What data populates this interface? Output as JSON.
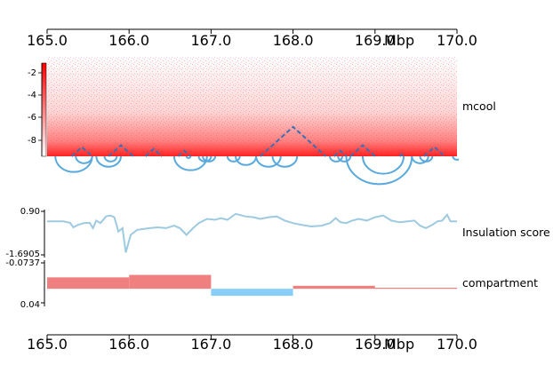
{
  "chart_data": {
    "type": "genome-tracks",
    "x_axis": {
      "range": [
        165.0,
        170.0
      ],
      "ticks": [
        "165.0",
        "166.0",
        "167.0",
        "168.0",
        "169.0",
        "170.0"
      ],
      "unit": "Mbp"
    },
    "tracks": [
      {
        "name": "mcool",
        "type": "heatmap",
        "colormap": [
          "#ffffff",
          "#ff0000"
        ],
        "colorbar_ticks": [
          "-2",
          "-4",
          "-6",
          "-8"
        ],
        "tad_boundaries": [
          165.0,
          165.3,
          165.55,
          165.75,
          166.05,
          166.2,
          166.4,
          166.6,
          166.75,
          167.6,
          168.4,
          168.5,
          168.65,
          168.7,
          169.0,
          169.3,
          169.35,
          169.6,
          169.85,
          170.0
        ],
        "tad_height": [
          0,
          1,
          0,
          0.8,
          0,
          1.1,
          0,
          0.9,
          0,
          3.1,
          0,
          0.6,
          0,
          0.9,
          0,
          0.9,
          0,
          0.9,
          0
        ],
        "loops": [
          [
            165.1,
            165.55
          ],
          [
            165.35,
            165.55
          ],
          [
            165.6,
            165.9
          ],
          [
            165.7,
            165.85
          ],
          [
            166.55,
            166.95
          ],
          [
            166.7,
            166.75
          ],
          [
            166.9,
            167.05
          ],
          [
            166.85,
            167.0
          ],
          [
            167.2,
            167.35
          ],
          [
            167.3,
            167.55
          ],
          [
            167.55,
            167.85
          ],
          [
            167.75,
            168.05
          ],
          [
            168.45,
            168.6
          ],
          [
            168.55,
            168.7
          ],
          [
            168.65,
            169.45
          ],
          [
            168.85,
            169.35
          ],
          [
            169.45,
            169.65
          ],
          [
            169.55,
            169.7
          ],
          [
            169.95,
            170.05
          ]
        ]
      },
      {
        "name": "Insulation score",
        "type": "line",
        "ylim": [
          -1.6905,
          0.9
        ],
        "y_tick_labels": [
          "0.90",
          "-1.6905"
        ],
        "color": "#9ecae1",
        "x": [
          165.0,
          165.2,
          165.28,
          165.32,
          165.38,
          165.45,
          165.52,
          165.56,
          165.6,
          165.65,
          165.72,
          165.77,
          165.82,
          165.87,
          165.92,
          165.96,
          166.02,
          166.1,
          166.25,
          166.35,
          166.45,
          166.55,
          166.62,
          166.7,
          166.78,
          166.85,
          166.95,
          167.05,
          167.12,
          167.2,
          167.3,
          167.42,
          167.52,
          167.6,
          167.7,
          167.8,
          167.9,
          168.0,
          168.1,
          168.22,
          168.35,
          168.45,
          168.52,
          168.58,
          168.65,
          168.72,
          168.8,
          168.9,
          169.0,
          169.1,
          169.2,
          169.3,
          169.4,
          169.48,
          169.55,
          169.62,
          169.7,
          169.76,
          169.82,
          169.88,
          169.92,
          170.0
        ],
        "y": [
          0.3,
          0.3,
          0.22,
          -0.05,
          0.1,
          0.2,
          0.22,
          -0.1,
          0.35,
          0.2,
          0.6,
          0.65,
          0.55,
          -0.3,
          -0.1,
          -1.55,
          -0.5,
          -0.2,
          -0.1,
          -0.05,
          -0.1,
          0.05,
          -0.1,
          -0.5,
          -0.1,
          0.2,
          0.45,
          0.4,
          0.5,
          0.4,
          0.75,
          0.6,
          0.55,
          0.45,
          0.55,
          0.6,
          0.35,
          0.2,
          0.1,
          0.0,
          0.05,
          0.2,
          0.5,
          0.25,
          0.2,
          0.35,
          0.45,
          0.35,
          0.55,
          0.65,
          0.35,
          0.25,
          0.3,
          0.35,
          0.05,
          -0.1,
          0.1,
          0.3,
          0.35,
          0.7,
          0.3,
          0.3
        ]
      },
      {
        "name": "compartment",
        "type": "bar",
        "ylim": [
          0.04,
          -0.0737
        ],
        "y_tick_labels": [
          "-0.0737",
          "0.04"
        ],
        "positive_color": "#f08080",
        "negative_color": "#87cefa",
        "segments": [
          {
            "start": 165.0,
            "end": 166.0,
            "value": -0.0325
          },
          {
            "start": 166.0,
            "end": 167.0,
            "value": -0.0395
          },
          {
            "start": 167.0,
            "end": 168.0,
            "value": 0.02
          },
          {
            "start": 168.0,
            "end": 169.0,
            "value": -0.0085
          },
          {
            "start": 169.0,
            "end": 170.0,
            "value": -0.003
          }
        ]
      }
    ]
  }
}
